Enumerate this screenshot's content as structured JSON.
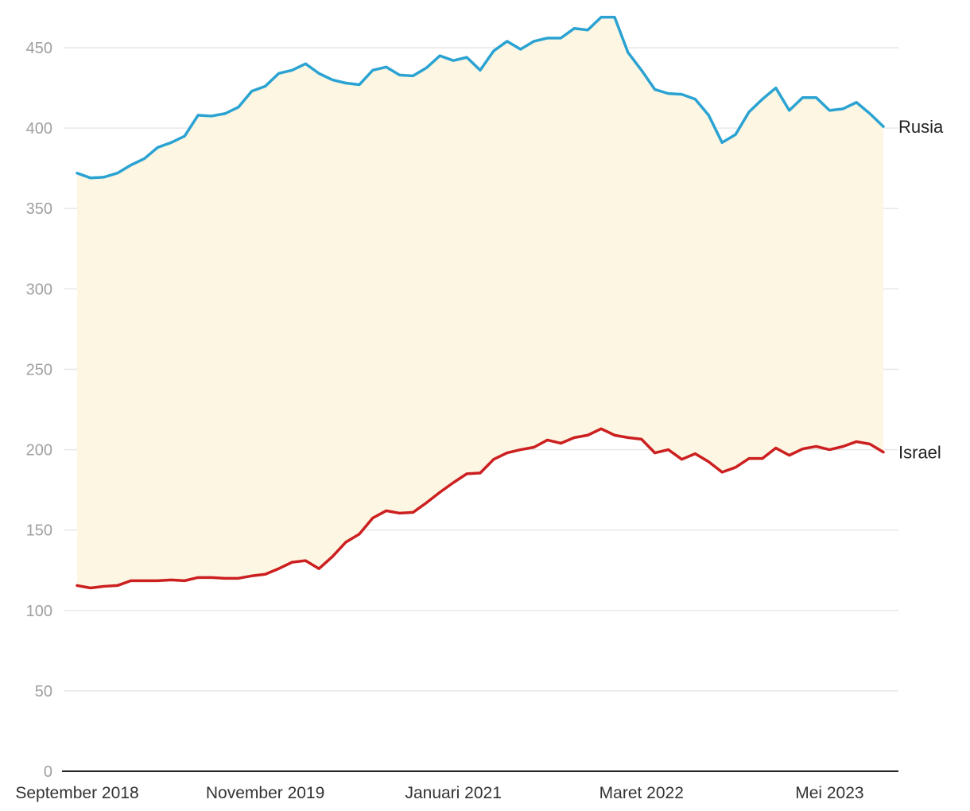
{
  "chart_data": {
    "type": "line",
    "ylim": [
      0,
      460
    ],
    "yticks": [
      0,
      50,
      100,
      150,
      200,
      250,
      300,
      350,
      400,
      450
    ],
    "xticks": [
      {
        "label": "September 2018",
        "index": 0
      },
      {
        "label": "November 2019",
        "index": 14
      },
      {
        "label": "Januari 2021",
        "index": 28
      },
      {
        "label": "Maret 2022",
        "index": 42
      },
      {
        "label": "Mei 2023",
        "index": 56
      }
    ],
    "grid": true,
    "fill_between": {
      "color": "#fdf6e3"
    },
    "series": [
      {
        "name": "Rusia",
        "color": "#2ba3d2",
        "values": [
          372,
          369,
          369.5,
          372,
          377,
          381,
          388,
          391,
          395,
          408,
          407.5,
          409,
          413,
          423,
          426,
          434,
          436,
          440,
          434,
          430,
          428,
          427,
          436,
          438,
          433,
          432.5,
          437.5,
          445,
          442,
          444,
          436,
          448,
          454,
          449,
          454,
          456,
          456,
          462,
          461,
          469,
          469,
          447,
          436,
          424,
          421.5,
          421,
          418,
          408,
          391,
          396,
          410,
          418,
          425,
          411,
          419,
          419,
          411,
          412,
          416,
          409,
          401
        ]
      },
      {
        "name": "Israel",
        "color": "#cc1f1f",
        "values": [
          115.5,
          114,
          115,
          115.5,
          118.5,
          118.5,
          118.5,
          119,
          118.5,
          120.5,
          120.5,
          120,
          120,
          121.5,
          122.5,
          126,
          130,
          131,
          126,
          133.5,
          142.5,
          147.5,
          157.5,
          162,
          160.5,
          161,
          167,
          173.5,
          179.5,
          185,
          185.5,
          194,
          198,
          200,
          201.5,
          206,
          204,
          207.5,
          209,
          213,
          209,
          207.5,
          206.5,
          198,
          200,
          194,
          197.5,
          192.5,
          186,
          189,
          194.5,
          194.5,
          201,
          196.5,
          200.5,
          202,
          200,
          202,
          205,
          203.5,
          198.5
        ]
      }
    ]
  }
}
